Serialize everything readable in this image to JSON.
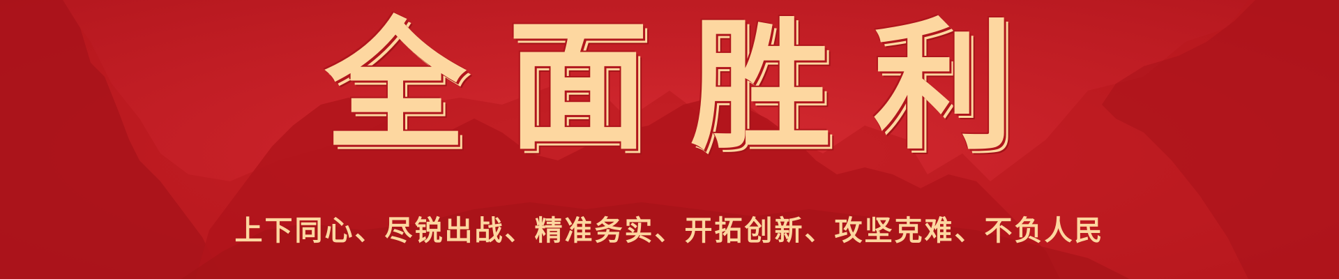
{
  "banner": {
    "headline": "全面胜利",
    "slogan": "上下同心、尽锐出战、精准务实、开拓创新、攻坚克难、不负人民",
    "colors": {
      "background": "#c62027",
      "mountain_dark": "#a8131a",
      "text_gold": "#fdd7a0"
    }
  }
}
